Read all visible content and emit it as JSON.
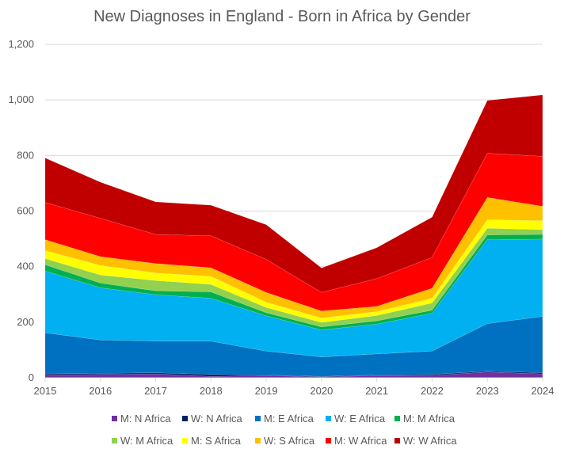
{
  "chart_data": {
    "type": "area",
    "stacked": true,
    "title": "New Diagnoses in England - Born in Africa by Gender",
    "xlabel": "",
    "ylabel": "",
    "x": [
      2015,
      2016,
      2017,
      2018,
      2019,
      2020,
      2021,
      2022,
      2023,
      2024
    ],
    "ylim": [
      0,
      1200
    ],
    "yticks": [
      0,
      200,
      400,
      600,
      800,
      1000,
      1200
    ],
    "ytick_labels": [
      "0",
      "200",
      "400",
      "600",
      "800",
      "1,000",
      "1,200"
    ],
    "grid": true,
    "legend_position": "bottom",
    "series": [
      {
        "name": "M: N Africa",
        "color": "#7030A0",
        "values": [
          10,
          12,
          14,
          5,
          8,
          3,
          8,
          8,
          21,
          14
        ]
      },
      {
        "name": "W: N Africa",
        "color": "#002060",
        "values": [
          4,
          4,
          4,
          7,
          2,
          2,
          2,
          4,
          3,
          4
        ]
      },
      {
        "name": "M: E Africa",
        "color": "#0070C0",
        "values": [
          148,
          120,
          114,
          120,
          86,
          70,
          76,
          84,
          171,
          203
        ]
      },
      {
        "name": "W: E Africa",
        "color": "#00B0F0",
        "values": [
          222,
          188,
          167,
          154,
          127,
          97,
          107,
          136,
          302,
          278
        ]
      },
      {
        "name": "M: M Africa",
        "color": "#00B050",
        "values": [
          23,
          17,
          14,
          23,
          11,
          11,
          12,
          11,
          17,
          17
        ]
      },
      {
        "name": "W: M Africa",
        "color": "#92D050",
        "values": [
          22,
          29,
          37,
          27,
          19,
          16,
          19,
          26,
          24,
          17
        ]
      },
      {
        "name": "M: S Africa",
        "color": "#FFFF00",
        "values": [
          29,
          34,
          27,
          29,
          19,
          16,
          14,
          17,
          31,
          32
        ]
      },
      {
        "name": "W: S Africa",
        "color": "#FFC000",
        "values": [
          39,
          32,
          34,
          31,
          35,
          25,
          19,
          36,
          80,
          52
        ]
      },
      {
        "name": "M: W Africa",
        "color": "#FF0000",
        "values": [
          134,
          138,
          105,
          115,
          119,
          67,
          100,
          111,
          159,
          180
        ]
      },
      {
        "name": "W: W Africa",
        "color": "#C00000",
        "values": [
          160,
          130,
          117,
          110,
          125,
          88,
          111,
          145,
          190,
          221
        ]
      }
    ]
  }
}
